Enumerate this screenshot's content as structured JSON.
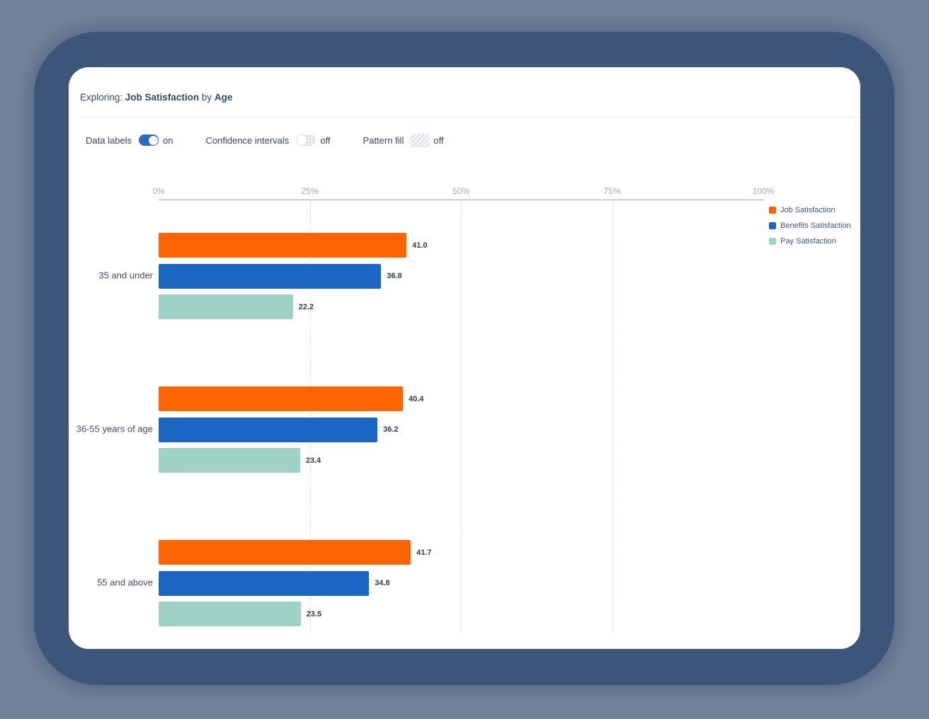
{
  "header": {
    "prefix": "Exploring: ",
    "metric": "Job Satisfaction",
    "connector": " by ",
    "dimension": "Age"
  },
  "toolbar": {
    "data_labels": {
      "label": "Data labels",
      "state": "on",
      "enabled": true
    },
    "confidence_intervals": {
      "label": "Confidence intervals",
      "state": "off",
      "enabled": false
    },
    "pattern_fill": {
      "label": "Pattern fill",
      "state": "off",
      "enabled": false
    }
  },
  "chart_data": {
    "type": "bar",
    "orientation": "horizontal",
    "title": "Job Satisfaction by Age",
    "categories": [
      "35 and under",
      "36-55 years of age",
      "55 and above"
    ],
    "series": [
      {
        "name": "Job Satisfaction",
        "color": "#FC6502",
        "values": [
          41.0,
          40.4,
          41.7
        ]
      },
      {
        "name": "Benefits Satisfaction",
        "color": "#1B66C2",
        "values": [
          36.8,
          36.2,
          34.8
        ]
      },
      {
        "name": "Pay Satisfaction",
        "color": "#A0D1C5",
        "values": [
          22.2,
          23.4,
          23.5
        ]
      }
    ],
    "xtick_labels": [
      "0%",
      "25%",
      "50%",
      "75%",
      "100%"
    ],
    "xtick_values": [
      0,
      25,
      50,
      75,
      100
    ],
    "xlim": [
      0,
      100
    ],
    "gridline_values": [
      25,
      50,
      75
    ],
    "grid_style": "dashed-vertical",
    "legend_position": "top-right",
    "data_labels_shown": true
  },
  "colors": {
    "page_background": "#75839A",
    "window_shadow": "#3D5578",
    "card_background": "#FFFFFF",
    "accent_toggle_on": "#2A69C4",
    "axis_text": "#9FA8B4",
    "axis_line": "#96A0AD",
    "gridline": "#D8DCE2",
    "category_text": "#3E4F63",
    "value_text": "#2C3B4D",
    "header_text": "#33475B"
  }
}
